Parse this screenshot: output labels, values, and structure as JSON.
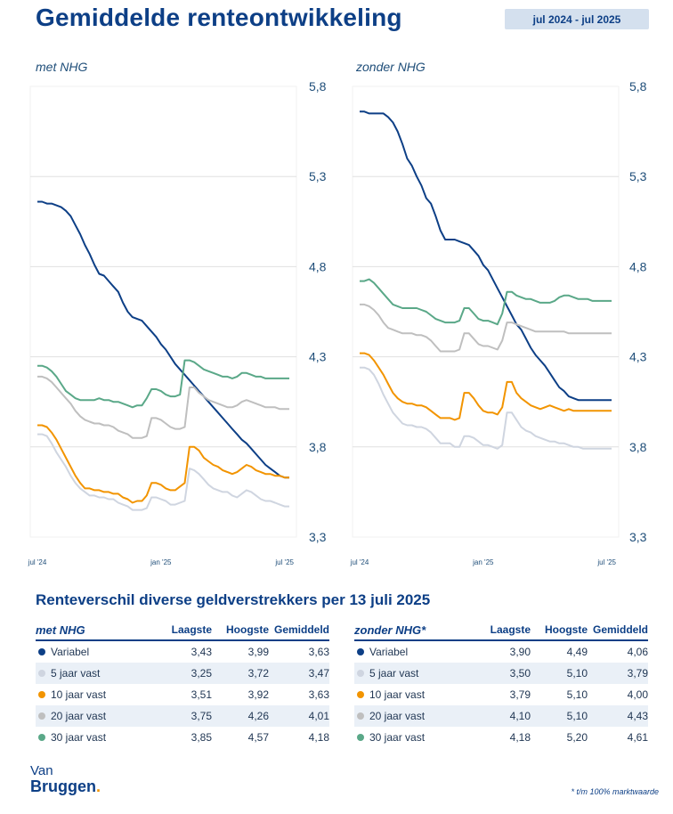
{
  "header": {
    "title": "Gemiddelde renteontwikkeling",
    "period": "jul 2024 - jul 2025"
  },
  "chart_data": [
    {
      "type": "line",
      "title": "met NHG",
      "x": [
        0,
        1,
        2,
        3,
        4,
        5,
        6,
        7,
        8,
        9,
        10,
        11,
        12,
        13,
        14,
        15,
        16,
        17,
        18,
        19,
        20,
        21,
        22,
        23,
        24,
        25,
        26,
        27,
        28,
        29,
        30,
        31,
        32,
        33,
        34,
        35,
        36,
        37,
        38,
        39,
        40,
        41,
        42,
        43,
        44,
        45,
        46,
        47,
        48,
        49,
        50,
        51,
        52,
        53
      ],
      "x_tick_labels": [
        "jul '24",
        "jan '25",
        "jul '25"
      ],
      "x_tick_positions": [
        0,
        26,
        52
      ],
      "ylim": [
        3.3,
        5.8
      ],
      "y_ticks": [
        "3,3",
        "3,8",
        "4,3",
        "4,8",
        "5,3",
        "5,8"
      ],
      "y_tick_values": [
        3.3,
        3.8,
        4.3,
        4.8,
        5.3,
        5.8
      ],
      "series": [
        {
          "color": "#0d3f86",
          "values": [
            5.16,
            5.16,
            5.15,
            5.15,
            5.14,
            5.13,
            5.11,
            5.08,
            5.03,
            4.98,
            4.92,
            4.87,
            4.81,
            4.76,
            4.75,
            4.72,
            4.69,
            4.66,
            4.6,
            4.55,
            4.52,
            4.51,
            4.5,
            4.47,
            4.44,
            4.41,
            4.37,
            4.34,
            4.3,
            4.26,
            4.23,
            4.2,
            4.17,
            4.14,
            4.11,
            4.08,
            4.05,
            4.02,
            3.99,
            3.96,
            3.93,
            3.9,
            3.87,
            3.84,
            3.82,
            3.79,
            3.76,
            3.73,
            3.7,
            3.68,
            3.66,
            3.64,
            3.63,
            3.63
          ]
        },
        {
          "color": "#cfd5e0",
          "values": [
            3.87,
            3.87,
            3.86,
            3.82,
            3.77,
            3.73,
            3.69,
            3.64,
            3.6,
            3.57,
            3.55,
            3.53,
            3.53,
            3.52,
            3.52,
            3.51,
            3.51,
            3.49,
            3.48,
            3.47,
            3.45,
            3.45,
            3.45,
            3.46,
            3.52,
            3.52,
            3.51,
            3.5,
            3.48,
            3.48,
            3.49,
            3.5,
            3.68,
            3.67,
            3.65,
            3.62,
            3.59,
            3.57,
            3.56,
            3.55,
            3.55,
            3.53,
            3.52,
            3.54,
            3.56,
            3.55,
            3.53,
            3.51,
            3.5,
            3.5,
            3.49,
            3.48,
            3.47,
            3.47
          ]
        },
        {
          "color": "#f29400",
          "values": [
            3.92,
            3.92,
            3.91,
            3.88,
            3.84,
            3.79,
            3.74,
            3.69,
            3.64,
            3.6,
            3.57,
            3.57,
            3.56,
            3.56,
            3.55,
            3.55,
            3.54,
            3.54,
            3.52,
            3.51,
            3.49,
            3.5,
            3.5,
            3.53,
            3.6,
            3.6,
            3.59,
            3.57,
            3.56,
            3.56,
            3.58,
            3.6,
            3.8,
            3.8,
            3.78,
            3.74,
            3.72,
            3.7,
            3.69,
            3.67,
            3.66,
            3.65,
            3.66,
            3.68,
            3.7,
            3.69,
            3.67,
            3.66,
            3.65,
            3.65,
            3.64,
            3.64,
            3.63,
            3.63
          ]
        },
        {
          "color": "#bfbfbf",
          "values": [
            4.19,
            4.19,
            4.18,
            4.16,
            4.13,
            4.1,
            4.07,
            4.04,
            4.0,
            3.97,
            3.95,
            3.94,
            3.93,
            3.93,
            3.92,
            3.92,
            3.91,
            3.89,
            3.88,
            3.87,
            3.85,
            3.85,
            3.85,
            3.86,
            3.96,
            3.96,
            3.95,
            3.93,
            3.91,
            3.9,
            3.9,
            3.91,
            4.13,
            4.13,
            4.1,
            4.08,
            4.06,
            4.05,
            4.04,
            4.03,
            4.02,
            4.02,
            4.03,
            4.05,
            4.06,
            4.05,
            4.04,
            4.03,
            4.02,
            4.02,
            4.02,
            4.01,
            4.01,
            4.01
          ]
        },
        {
          "color": "#5aa888",
          "values": [
            4.25,
            4.25,
            4.24,
            4.22,
            4.19,
            4.15,
            4.11,
            4.09,
            4.07,
            4.06,
            4.06,
            4.06,
            4.06,
            4.07,
            4.06,
            4.06,
            4.05,
            4.05,
            4.04,
            4.03,
            4.02,
            4.03,
            4.03,
            4.07,
            4.12,
            4.12,
            4.11,
            4.09,
            4.08,
            4.08,
            4.09,
            4.28,
            4.28,
            4.27,
            4.25,
            4.23,
            4.22,
            4.21,
            4.2,
            4.19,
            4.19,
            4.18,
            4.19,
            4.21,
            4.21,
            4.2,
            4.19,
            4.19,
            4.18,
            4.18,
            4.18,
            4.18,
            4.18,
            4.18
          ]
        }
      ]
    },
    {
      "type": "line",
      "title": "zonder NHG",
      "x": [
        0,
        1,
        2,
        3,
        4,
        5,
        6,
        7,
        8,
        9,
        10,
        11,
        12,
        13,
        14,
        15,
        16,
        17,
        18,
        19,
        20,
        21,
        22,
        23,
        24,
        25,
        26,
        27,
        28,
        29,
        30,
        31,
        32,
        33,
        34,
        35,
        36,
        37,
        38,
        39,
        40,
        41,
        42,
        43,
        44,
        45,
        46,
        47,
        48,
        49,
        50,
        51,
        52,
        53
      ],
      "x_tick_labels": [
        "jul '24",
        "jan '25",
        "jul '25"
      ],
      "x_tick_positions": [
        0,
        26,
        52
      ],
      "ylim": [
        3.3,
        5.8
      ],
      "y_ticks": [
        "3,3",
        "3,8",
        "4,3",
        "4,8",
        "5,3",
        "5,8"
      ],
      "y_tick_values": [
        3.3,
        3.8,
        4.3,
        4.8,
        5.3,
        5.8
      ],
      "series": [
        {
          "color": "#0d3f86",
          "values": [
            5.66,
            5.66,
            5.65,
            5.65,
            5.65,
            5.65,
            5.63,
            5.6,
            5.55,
            5.48,
            5.4,
            5.36,
            5.3,
            5.25,
            5.18,
            5.15,
            5.08,
            5.0,
            4.95,
            4.95,
            4.95,
            4.94,
            4.93,
            4.92,
            4.89,
            4.86,
            4.81,
            4.78,
            4.73,
            4.68,
            4.63,
            4.58,
            4.53,
            4.48,
            4.45,
            4.4,
            4.35,
            4.31,
            4.28,
            4.25,
            4.21,
            4.17,
            4.13,
            4.11,
            4.08,
            4.07,
            4.06,
            4.06,
            4.06,
            4.06,
            4.06,
            4.06,
            4.06,
            4.06
          ]
        },
        {
          "color": "#cfd5e0",
          "values": [
            4.24,
            4.24,
            4.23,
            4.2,
            4.15,
            4.09,
            4.04,
            3.99,
            3.96,
            3.93,
            3.92,
            3.92,
            3.91,
            3.91,
            3.9,
            3.88,
            3.85,
            3.82,
            3.82,
            3.82,
            3.8,
            3.8,
            3.86,
            3.86,
            3.85,
            3.83,
            3.81,
            3.81,
            3.8,
            3.79,
            3.81,
            3.99,
            3.99,
            3.95,
            3.91,
            3.89,
            3.88,
            3.86,
            3.85,
            3.84,
            3.83,
            3.83,
            3.82,
            3.82,
            3.81,
            3.8,
            3.8,
            3.79,
            3.79,
            3.79,
            3.79,
            3.79,
            3.79,
            3.79
          ]
        },
        {
          "color": "#f29400",
          "values": [
            4.32,
            4.32,
            4.31,
            4.28,
            4.24,
            4.2,
            4.15,
            4.1,
            4.07,
            4.05,
            4.04,
            4.04,
            4.03,
            4.03,
            4.02,
            4.0,
            3.98,
            3.96,
            3.96,
            3.96,
            3.95,
            3.96,
            4.1,
            4.1,
            4.07,
            4.03,
            4.0,
            3.99,
            3.99,
            3.98,
            4.02,
            4.16,
            4.16,
            4.1,
            4.07,
            4.05,
            4.03,
            4.02,
            4.01,
            4.02,
            4.03,
            4.02,
            4.01,
            4.0,
            4.01,
            4.0,
            4.0,
            4.0,
            4.0,
            4.0,
            4.0,
            4.0,
            4.0,
            4.0
          ]
        },
        {
          "color": "#bfbfbf",
          "values": [
            4.59,
            4.59,
            4.58,
            4.56,
            4.53,
            4.49,
            4.46,
            4.45,
            4.44,
            4.43,
            4.43,
            4.43,
            4.42,
            4.42,
            4.41,
            4.39,
            4.36,
            4.33,
            4.33,
            4.33,
            4.33,
            4.34,
            4.43,
            4.43,
            4.4,
            4.37,
            4.36,
            4.36,
            4.35,
            4.34,
            4.39,
            4.49,
            4.49,
            4.48,
            4.47,
            4.46,
            4.45,
            4.44,
            4.44,
            4.44,
            4.44,
            4.44,
            4.44,
            4.44,
            4.43,
            4.43,
            4.43,
            4.43,
            4.43,
            4.43,
            4.43,
            4.43,
            4.43,
            4.43
          ]
        },
        {
          "color": "#5aa888",
          "values": [
            4.72,
            4.72,
            4.73,
            4.71,
            4.68,
            4.65,
            4.62,
            4.59,
            4.58,
            4.57,
            4.57,
            4.57,
            4.57,
            4.56,
            4.55,
            4.53,
            4.51,
            4.5,
            4.49,
            4.49,
            4.49,
            4.5,
            4.57,
            4.57,
            4.54,
            4.51,
            4.5,
            4.5,
            4.49,
            4.48,
            4.54,
            4.66,
            4.66,
            4.64,
            4.63,
            4.62,
            4.62,
            4.61,
            4.6,
            4.6,
            4.6,
            4.61,
            4.63,
            4.64,
            4.64,
            4.63,
            4.62,
            4.62,
            4.62,
            4.61,
            4.61,
            4.61,
            4.61,
            4.61
          ]
        }
      ]
    }
  ],
  "section": {
    "title": "Renteverschil diverse geldverstrekkers per 13 juli 2025"
  },
  "tables": [
    {
      "headers": [
        "met NHG",
        "Laagste",
        "Hoogste",
        "Gemiddeld"
      ],
      "rows": [
        {
          "label": "Variabel",
          "color": "#0d3f86",
          "low": "3,43",
          "high": "3,99",
          "avg": "3,63"
        },
        {
          "label": "5 jaar vast",
          "color": "#cfd5e0",
          "low": "3,25",
          "high": "3,72",
          "avg": "3,47"
        },
        {
          "label": "10 jaar vast",
          "color": "#f29400",
          "low": "3,51",
          "high": "3,92",
          "avg": "3,63"
        },
        {
          "label": "20 jaar vast",
          "color": "#bfbfbf",
          "low": "3,75",
          "high": "4,26",
          "avg": "4,01"
        },
        {
          "label": "30 jaar vast",
          "color": "#5aa888",
          "low": "3,85",
          "high": "4,57",
          "avg": "4,18"
        }
      ]
    },
    {
      "headers": [
        "zonder NHG*",
        "Laagste",
        "Hoogste",
        "Gemiddeld"
      ],
      "rows": [
        {
          "label": "Variabel",
          "color": "#0d3f86",
          "low": "3,90",
          "high": "4,49",
          "avg": "4,06"
        },
        {
          "label": "5 jaar vast",
          "color": "#cfd5e0",
          "low": "3,50",
          "high": "5,10",
          "avg": "3,79"
        },
        {
          "label": "10 jaar vast",
          "color": "#f29400",
          "low": "3,79",
          "high": "5,10",
          "avg": "4,00"
        },
        {
          "label": "20 jaar vast",
          "color": "#bfbfbf",
          "low": "4,10",
          "high": "5,10",
          "avg": "4,43"
        },
        {
          "label": "30 jaar vast",
          "color": "#5aa888",
          "low": "4,18",
          "high": "5,20",
          "avg": "4,61"
        }
      ]
    }
  ],
  "logo": {
    "line1": "Van",
    "line2": "Bruggen",
    "mark": "."
  },
  "footnote": "* t/m 100% marktwaarde"
}
